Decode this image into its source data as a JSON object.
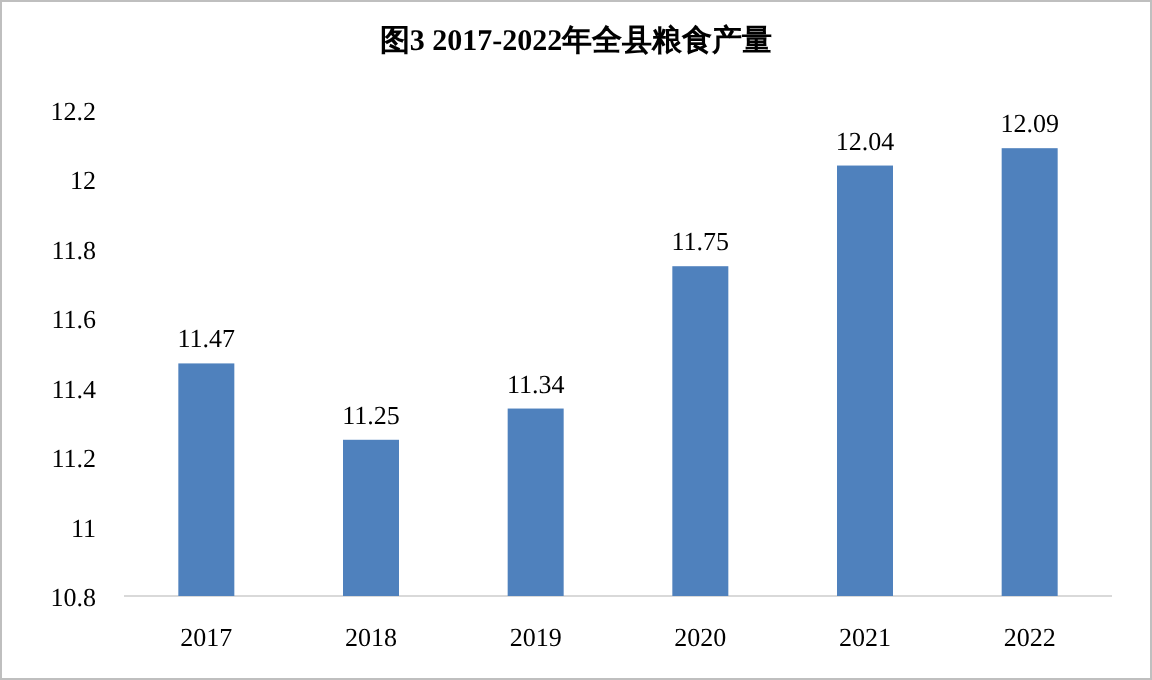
{
  "chart_data": {
    "type": "bar",
    "title": "图3 2017-2022年全县粮食产量",
    "categories": [
      "2017",
      "2018",
      "2019",
      "2020",
      "2021",
      "2022"
    ],
    "values": [
      11.47,
      11.25,
      11.34,
      11.75,
      12.04,
      12.09
    ],
    "color": "#4f81bd",
    "ylim": [
      10.8,
      12.2
    ],
    "yticks": [
      10.8,
      11,
      11.2,
      11.4,
      11.6,
      11.8,
      12,
      12.2
    ],
    "data_labels": true,
    "grid": false
  }
}
